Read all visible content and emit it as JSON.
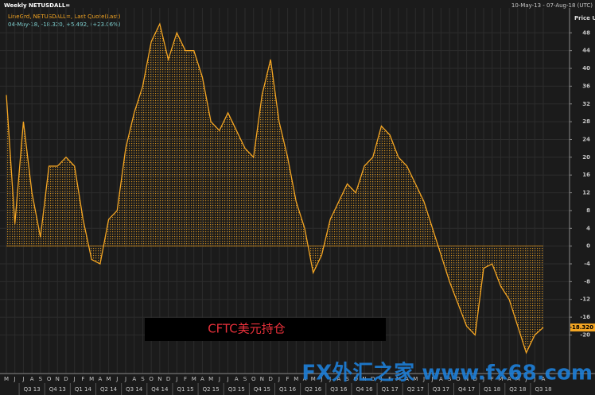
{
  "chart_data": {
    "type": "line",
    "title": "Weekly NETUSDALL=",
    "subtitle": "LineGrd, NETUSDALL=, Last Quote(Last)",
    "quote_line": "04-May-18, -18.320, +5.492, (+23.06%)",
    "date_range": "10-May-13 - 07-Aug-18 (UTC)",
    "y_axis_label": "Price USD",
    "annotation": "CFTC美元持仓",
    "watermark": "FX外汇之家 www.fx68.com",
    "categories": [
      "M",
      "J",
      "J",
      "A",
      "S",
      "O",
      "N",
      "D",
      "J",
      "F",
      "M",
      "A",
      "M",
      "J",
      "J",
      "A",
      "S",
      "O",
      "N",
      "D",
      "J",
      "F",
      "M",
      "A",
      "M",
      "J",
      "J",
      "A",
      "S",
      "O",
      "N",
      "D",
      "J",
      "F",
      "M",
      "A",
      "M",
      "J",
      "J",
      "A",
      "S",
      "O",
      "N",
      "D",
      "J",
      "F",
      "M",
      "A",
      "M",
      "J",
      "J",
      "A",
      "S",
      "O",
      "N",
      "D",
      "J",
      "F",
      "M",
      "A",
      "M",
      "J",
      "J",
      "A"
    ],
    "quarters": [
      "Q3 13",
      "Q4 13",
      "Q1 14",
      "Q2 14",
      "Q3 14",
      "Q4 14",
      "Q1 15",
      "Q2 15",
      "Q3 15",
      "Q4 15",
      "Q1 16",
      "Q2 16",
      "Q3 16",
      "Q4 16",
      "Q1 17",
      "Q2 17",
      "Q3 17",
      "Q4 17",
      "Q1 18",
      "Q2 18",
      "Q3 18"
    ],
    "series": [
      {
        "name": "NETUSDALL=",
        "color": "#f5a623",
        "values": [
          34,
          5,
          28,
          12,
          2,
          18,
          18,
          20,
          18,
          6,
          -3,
          -4,
          6,
          8,
          22,
          30,
          36,
          46,
          50,
          42,
          48,
          44,
          44,
          38,
          28,
          26,
          30,
          26,
          22,
          20,
          34,
          42,
          28,
          20,
          10,
          4,
          -6,
          -2,
          6,
          10,
          14,
          12,
          18,
          20,
          27,
          25,
          20,
          18,
          14,
          10,
          4,
          -2,
          -8,
          -13,
          -18,
          -20,
          -5,
          -4,
          -9,
          -12,
          -18,
          -24,
          -20,
          -18.32
        ],
        "value_labels": [
          null,
          null,
          null,
          null,
          null,
          null,
          null,
          null,
          null,
          null,
          null,
          null,
          null,
          null,
          null,
          null,
          null,
          null,
          null,
          null,
          null,
          null,
          null,
          null,
          null,
          null,
          null,
          null,
          null,
          null,
          null,
          null,
          null,
          null,
          null,
          null,
          null,
          null,
          null,
          null,
          null,
          null,
          null,
          null,
          null,
          null,
          null,
          null,
          null,
          null,
          null,
          null,
          null,
          null,
          null,
          null,
          null,
          null,
          null,
          null,
          null,
          null,
          null,
          "-18.320"
        ]
      }
    ],
    "ylim": [
      -26,
      53.6
    ],
    "yticks": [
      -20,
      -16,
      -12,
      -8,
      -4,
      0,
      4,
      8,
      12,
      16,
      20,
      24,
      28,
      32,
      36,
      40,
      44,
      48
    ],
    "grid": true
  }
}
